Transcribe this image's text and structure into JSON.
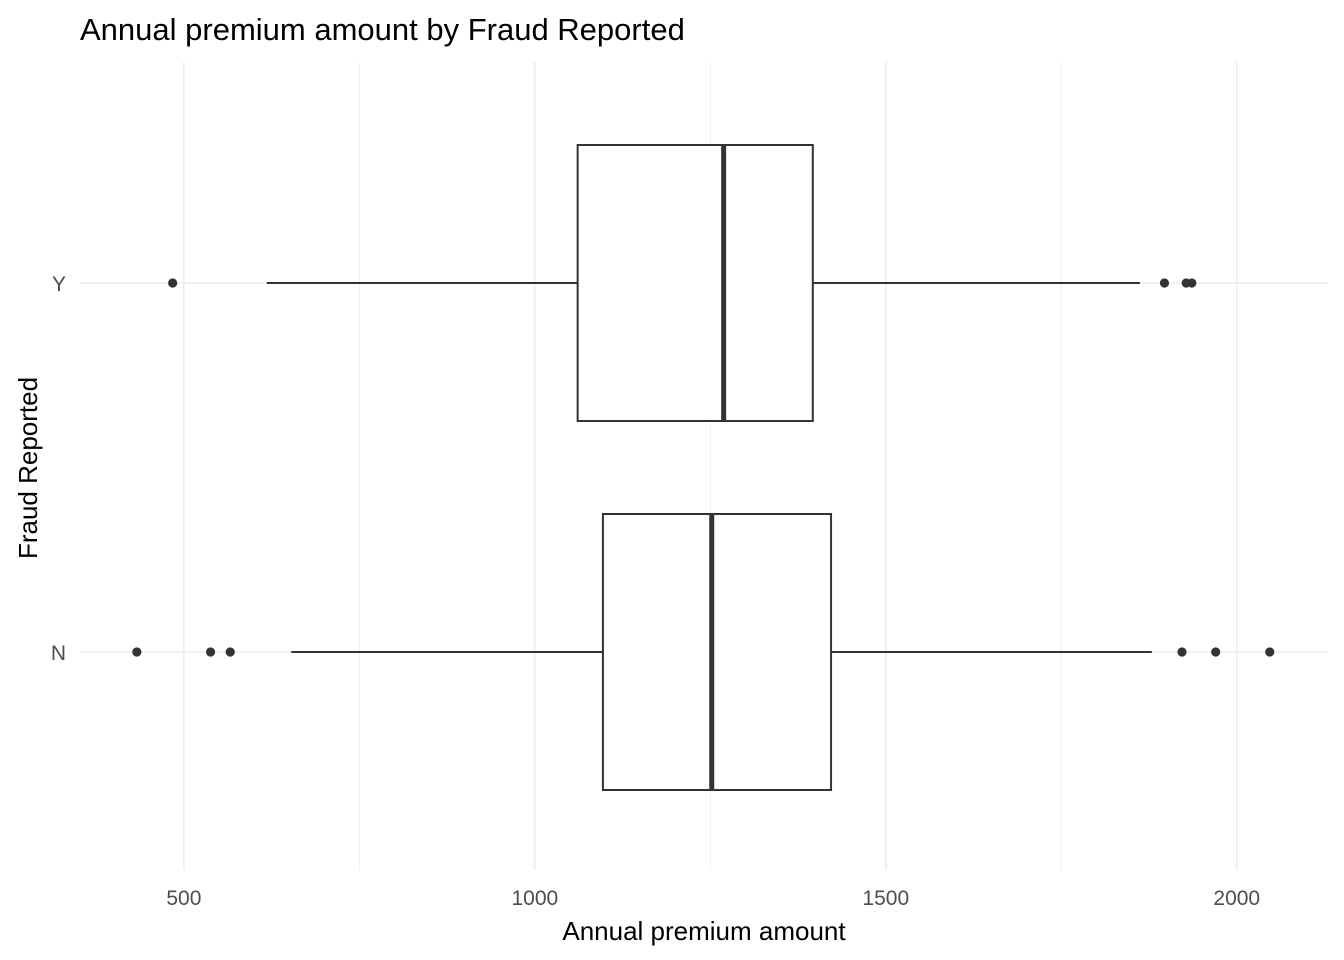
{
  "chart_data": {
    "type": "boxplot",
    "orientation": "horizontal",
    "title": "Annual premium amount by Fraud Reported",
    "xlabel": "Annual premium amount",
    "ylabel": "Fraud Reported",
    "xlim": [
      352,
      2130
    ],
    "x_ticks": [
      500,
      1000,
      1500,
      2000
    ],
    "x_tick_labels": [
      "500",
      "1000",
      "1500",
      "2000"
    ],
    "x_minor_ticks": [
      750,
      1250,
      1750
    ],
    "categories": [
      "N",
      "Y"
    ],
    "grid": true,
    "boxes": [
      {
        "category": "N",
        "whisker_low": 653,
        "q1": 1097,
        "median": 1252,
        "q3": 1422,
        "whisker_high": 1879,
        "outliers": [
          433,
          538,
          566,
          1922,
          1970,
          2047
        ]
      },
      {
        "category": "Y",
        "whisker_low": 618,
        "q1": 1061,
        "median": 1269,
        "q3": 1396,
        "whisker_high": 1862,
        "outliers": [
          484,
          1897,
          1928,
          1936
        ]
      }
    ]
  }
}
